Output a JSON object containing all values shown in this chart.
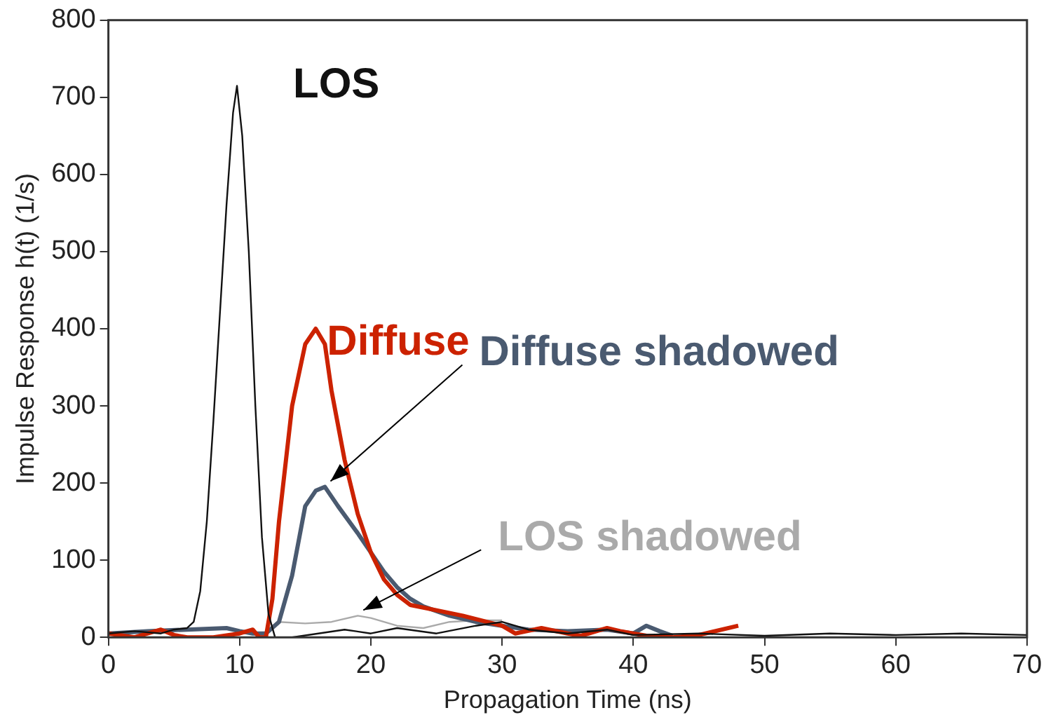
{
  "chart_data": {
    "type": "line",
    "xlabel": "Propagation Time (ns)",
    "ylabel": "Impulse Response h(t) (1/s)",
    "xlim": [
      0,
      70
    ],
    "xticks": [
      0,
      10,
      20,
      30,
      40,
      50,
      60,
      70
    ],
    "ylim": [
      0,
      800
    ],
    "yticks": [
      0,
      100,
      200,
      300,
      400,
      500,
      600,
      700,
      800
    ],
    "grid": false,
    "legend": false,
    "marker": "none",
    "line_style": "solid",
    "series": [
      {
        "name": "LOS",
        "color": "#111111",
        "x": [
          0,
          2,
          4,
          5,
          6,
          6.5,
          7,
          7.5,
          8,
          8.5,
          9,
          9.5,
          9.8,
          10.2,
          10.7,
          11.2,
          11.7,
          12.2,
          12.7,
          14,
          16,
          18,
          20,
          22,
          25,
          28,
          30,
          32,
          35,
          38,
          40,
          45,
          50,
          55,
          60,
          65,
          70
        ],
        "values": [
          5,
          8,
          5,
          10,
          12,
          20,
          60,
          150,
          280,
          420,
          560,
          680,
          715,
          650,
          500,
          300,
          130,
          30,
          0,
          0,
          5,
          10,
          5,
          12,
          5,
          15,
          20,
          10,
          5,
          10,
          3,
          5,
          2,
          5,
          3,
          5,
          3
        ]
      },
      {
        "name": "Diffuse",
        "color": "#cc2200",
        "x": [
          0,
          2,
          3,
          4,
          5,
          6,
          8,
          10,
          11,
          11.5,
          12,
          12.5,
          13,
          14,
          15,
          15.8,
          16.5,
          17,
          18,
          19,
          20,
          21,
          22,
          23,
          25,
          27,
          30,
          31,
          33,
          35,
          36,
          38,
          39,
          41,
          43,
          45,
          48
        ],
        "values": [
          5,
          0,
          5,
          10,
          3,
          0,
          0,
          5,
          10,
          0,
          0,
          50,
          150,
          300,
          380,
          400,
          380,
          320,
          230,
          160,
          110,
          75,
          55,
          42,
          35,
          28,
          15,
          5,
          12,
          5,
          2,
          12,
          8,
          2,
          0,
          3,
          15
        ]
      },
      {
        "name": "Diffuse shadowed",
        "color": "#4a5a70",
        "x": [
          0,
          3,
          6,
          9,
          10,
          11,
          12,
          13,
          14,
          15,
          15.8,
          16.5,
          17.5,
          19,
          20,
          21,
          22,
          23,
          24,
          26,
          28,
          30,
          32,
          35,
          38,
          40,
          41,
          42,
          43
        ],
        "values": [
          5,
          8,
          10,
          12,
          8,
          5,
          5,
          20,
          80,
          170,
          190,
          195,
          170,
          135,
          110,
          85,
          65,
          50,
          40,
          28,
          20,
          15,
          10,
          8,
          10,
          5,
          15,
          8,
          2
        ]
      },
      {
        "name": "LOS shadowed",
        "color": "#aaaaaa",
        "x": [
          13,
          15,
          17,
          19,
          20,
          22,
          24,
          26,
          28,
          30
        ],
        "values": [
          20,
          18,
          20,
          28,
          25,
          15,
          12,
          20,
          22,
          22
        ]
      }
    ]
  }
}
